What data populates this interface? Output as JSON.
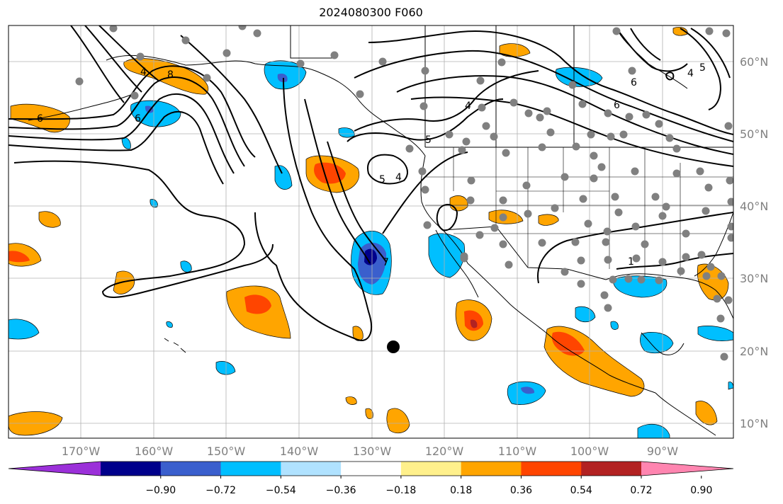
{
  "title": "2024080300 F060",
  "map": {
    "lon_labels": [
      "170°W",
      "160°W",
      "150°W",
      "140°W",
      "130°W",
      "120°W",
      "110°W",
      "100°W",
      "90°W"
    ],
    "lat_labels": [
      "60°N",
      "50°N",
      "40°N",
      "30°N",
      "20°N",
      "10°N"
    ],
    "contour_labels": [
      "4",
      "8",
      "6",
      "6",
      "5",
      "4",
      "4",
      "6",
      "5",
      "6",
      "4",
      "5",
      "1",
      "7"
    ]
  },
  "colorbar": {
    "tick_labels": [
      "−0.90",
      "−0.72",
      "−0.54",
      "−0.36",
      "−0.18",
      "0.18",
      "0.36",
      "0.54",
      "0.72",
      "0.90"
    ],
    "colors": [
      "#9b30d9",
      "#00008b",
      "#3a5fcd",
      "#00bfff",
      "#b0e2ff",
      "#ffffff",
      "#fff08c",
      "#ffa500",
      "#ff4500",
      "#b22222",
      "#ff85b0"
    ]
  },
  "marker": {
    "color": "#000000"
  },
  "station_color": "#808080"
}
